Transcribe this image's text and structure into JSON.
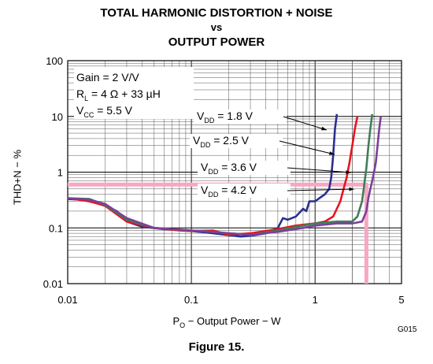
{
  "chart_data": {
    "type": "line",
    "title": "TOTAL HARMONIC DISTORTION + NOISE",
    "title_vs": "vs",
    "subtitle": "OUTPUT POWER",
    "xlabel_prefix": "P",
    "xlabel_sub": "O",
    "xlabel_rest": " − Output Power − W",
    "ylabel": "THD+N − %",
    "x_scale": "log",
    "y_scale": "log",
    "xlim": [
      0.01,
      5
    ],
    "ylim": [
      0.01,
      100
    ],
    "x_ticks": [
      "0.01",
      "0.1",
      "1",
      "5"
    ],
    "y_ticks": [
      "100",
      "10",
      "1",
      "0.1",
      "0.01"
    ],
    "grid": true,
    "conditions": {
      "gain": "Gain = 2 V/V",
      "rl_main": "R",
      "rl_sub": "L",
      "rl_rest": " = 4 Ω + 33 µH",
      "vcc_main": "V",
      "vcc_sub": "CC",
      "vcc_rest": " = 5.5 V"
    },
    "series": [
      {
        "name_main": "V",
        "name_sub": "DD",
        "name_rest": " = 1.8 V",
        "color": "#2b2f8f",
        "points": [
          [
            0.01,
            0.33
          ],
          [
            0.013,
            0.32
          ],
          [
            0.017,
            0.28
          ],
          [
            0.02,
            0.25
          ],
          [
            0.025,
            0.2
          ],
          [
            0.03,
            0.13
          ],
          [
            0.04,
            0.105
          ],
          [
            0.06,
            0.095
          ],
          [
            0.1,
            0.088
          ],
          [
            0.15,
            0.08
          ],
          [
            0.2,
            0.074
          ],
          [
            0.25,
            0.07
          ],
          [
            0.3,
            0.072
          ],
          [
            0.4,
            0.08
          ],
          [
            0.5,
            0.1
          ],
          [
            0.55,
            0.15
          ],
          [
            0.6,
            0.14
          ],
          [
            0.7,
            0.16
          ],
          [
            0.8,
            0.22
          ],
          [
            0.85,
            0.2
          ],
          [
            0.9,
            0.3
          ],
          [
            1.0,
            0.3
          ],
          [
            1.1,
            0.35
          ],
          [
            1.2,
            0.4
          ],
          [
            1.3,
            0.5
          ],
          [
            1.35,
            0.8
          ],
          [
            1.4,
            2
          ],
          [
            1.45,
            6
          ],
          [
            1.5,
            11
          ]
        ]
      },
      {
        "name_main": "V",
        "name_sub": "DD",
        "name_rest": " = 2.5 V",
        "color": "#e8141f",
        "points": [
          [
            0.01,
            0.34
          ],
          [
            0.015,
            0.3
          ],
          [
            0.02,
            0.25
          ],
          [
            0.03,
            0.13
          ],
          [
            0.05,
            0.1
          ],
          [
            0.08,
            0.09
          ],
          [
            0.1,
            0.088
          ],
          [
            0.15,
            0.09
          ],
          [
            0.2,
            0.075
          ],
          [
            0.3,
            0.08
          ],
          [
            0.5,
            0.095
          ],
          [
            0.7,
            0.11
          ],
          [
            1.0,
            0.12
          ],
          [
            1.2,
            0.13
          ],
          [
            1.4,
            0.16
          ],
          [
            1.6,
            0.3
          ],
          [
            1.7,
            0.5
          ],
          [
            1.8,
            0.8
          ],
          [
            1.9,
            1.5
          ],
          [
            2.0,
            3
          ],
          [
            2.1,
            6
          ],
          [
            2.2,
            10
          ]
        ]
      },
      {
        "name_main": "V",
        "name_sub": "DD",
        "name_rest": " = 3.6 V",
        "color": "#3f7d58",
        "points": [
          [
            0.01,
            0.34
          ],
          [
            0.015,
            0.33
          ],
          [
            0.02,
            0.26
          ],
          [
            0.03,
            0.14
          ],
          [
            0.05,
            0.1
          ],
          [
            0.1,
            0.09
          ],
          [
            0.15,
            0.085
          ],
          [
            0.2,
            0.08
          ],
          [
            0.3,
            0.075
          ],
          [
            0.5,
            0.09
          ],
          [
            0.8,
            0.11
          ],
          [
            1.0,
            0.12
          ],
          [
            1.5,
            0.13
          ],
          [
            2.0,
            0.13
          ],
          [
            2.2,
            0.16
          ],
          [
            2.4,
            0.3
          ],
          [
            2.5,
            0.6
          ],
          [
            2.6,
            1.2
          ],
          [
            2.7,
            3
          ],
          [
            2.8,
            6
          ],
          [
            2.9,
            11
          ]
        ]
      },
      {
        "name_main": "V",
        "name_sub": "DD",
        "name_rest": " = 4.2 V",
        "color": "#7d3f9a",
        "points": [
          [
            0.01,
            0.34
          ],
          [
            0.015,
            0.32
          ],
          [
            0.02,
            0.27
          ],
          [
            0.03,
            0.15
          ],
          [
            0.05,
            0.1
          ],
          [
            0.1,
            0.09
          ],
          [
            0.2,
            0.08
          ],
          [
            0.3,
            0.075
          ],
          [
            0.5,
            0.085
          ],
          [
            0.8,
            0.1
          ],
          [
            1.0,
            0.11
          ],
          [
            1.5,
            0.12
          ],
          [
            2.0,
            0.12
          ],
          [
            2.4,
            0.13
          ],
          [
            2.6,
            0.2
          ],
          [
            2.7,
            0.35
          ],
          [
            2.8,
            0.5
          ],
          [
            2.9,
            0.7
          ],
          [
            3.0,
            1
          ],
          [
            3.1,
            1.5
          ],
          [
            3.2,
            3
          ],
          [
            3.3,
            6
          ],
          [
            3.4,
            10
          ]
        ]
      }
    ],
    "highlight": {
      "color": "#f7a7c4",
      "y": 0.6,
      "x": 2.6
    },
    "footer_code": "G015",
    "figure_label": "Figure 15."
  }
}
